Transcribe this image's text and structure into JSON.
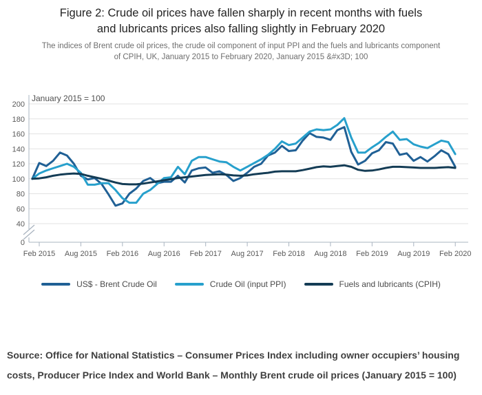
{
  "title": {
    "line1": "Figure 2: Crude oil prices have fallen sharply in recent months with fuels",
    "line2": "and lubricants prices also falling slightly in February 2020"
  },
  "subtitle": {
    "line1": "The indices of Brent crude oil prices, the crude oil component of input PPI and the fuels and lubricants component",
    "line2": "of CPIH, UK, January 2015 to February 2020, January 2015 &#x3D; 100"
  },
  "source": {
    "line1": "Source: Office for National Statistics – Consumer Prices Index including owner  occupiers’ housing",
    "line2": "costs, Producer Price  Index and World Bank – Monthly Brent crude oil prices (January 2015 = 100)"
  },
  "colors": {
    "grid": "#e2e2e2",
    "axis": "#a9b4c0",
    "tick_text": "#595959",
    "unit_text": "#4f4f4f"
  },
  "chart_data": {
    "type": "line",
    "unit_label": "January 2015 = 100",
    "time_range": "January 2015 to February 2020, monthly",
    "x_tick_labels": [
      "Feb 2015",
      "Aug 2015",
      "Feb 2016",
      "Aug 2016",
      "Feb 2017",
      "Aug 2017",
      "Feb 2018",
      "Aug 2018",
      "Feb 2019",
      "Aug 2019",
      "Feb 2020"
    ],
    "y_ticks": [
      0,
      40,
      60,
      80,
      100,
      120,
      140,
      160,
      180,
      200
    ],
    "y_axis_break_between": [
      0,
      40
    ],
    "grid": "horizontal-only",
    "legend_position": "bottom-center",
    "series": [
      {
        "name": "US$ - Brent Crude Oil",
        "color": "#206095",
        "values": [
          100,
          121,
          117,
          124,
          135,
          131,
          120,
          104,
          99,
          101,
          93,
          79,
          64,
          67,
          80,
          87,
          97,
          101,
          94,
          96,
          96,
          104,
          95,
          111,
          114,
          115,
          108,
          110,
          105,
          97,
          101,
          108,
          116,
          120,
          131,
          135,
          144,
          137,
          138,
          151,
          161,
          156,
          155,
          152,
          165,
          169,
          136,
          119,
          124,
          134,
          138,
          149,
          147,
          132,
          134,
          124,
          129,
          123,
          130,
          138,
          133,
          116
        ]
      },
      {
        "name": "Crude Oil (input PPI)",
        "color": "#27A0CC",
        "values": [
          100,
          107,
          111,
          114,
          117,
          120,
          116,
          108,
          92,
          92,
          94,
          94,
          85,
          74,
          68,
          68,
          80,
          85,
          93,
          101,
          102,
          116,
          106,
          124,
          129,
          129,
          126,
          123,
          122,
          116,
          111,
          116,
          121,
          126,
          132,
          140,
          150,
          145,
          147,
          155,
          163,
          166,
          165,
          166,
          172,
          181,
          155,
          135,
          135,
          142,
          148,
          156,
          163,
          152,
          153,
          146,
          143,
          141,
          146,
          151,
          149,
          133
        ]
      },
      {
        "name": "Fuels and lubricants (CPIH)",
        "color": "#143C55",
        "values": [
          100,
          100.5,
          102,
          104,
          105.5,
          106.5,
          107,
          106.5,
          104,
          102,
          100,
          97.5,
          95,
          93,
          92.5,
          92.5,
          93.5,
          95,
          96.5,
          98,
          99.5,
          101,
          102,
          103,
          104,
          105,
          105.5,
          106,
          105.5,
          104.5,
          104,
          104.5,
          106,
          107,
          108,
          109.5,
          110,
          110,
          110,
          111.5,
          113.5,
          115.5,
          116.5,
          116,
          117,
          118,
          116,
          112,
          110.5,
          111,
          112.5,
          114.5,
          116,
          116,
          115.5,
          115,
          114.5,
          114.5,
          114.5,
          115,
          115.5,
          114.5
        ]
      }
    ]
  }
}
